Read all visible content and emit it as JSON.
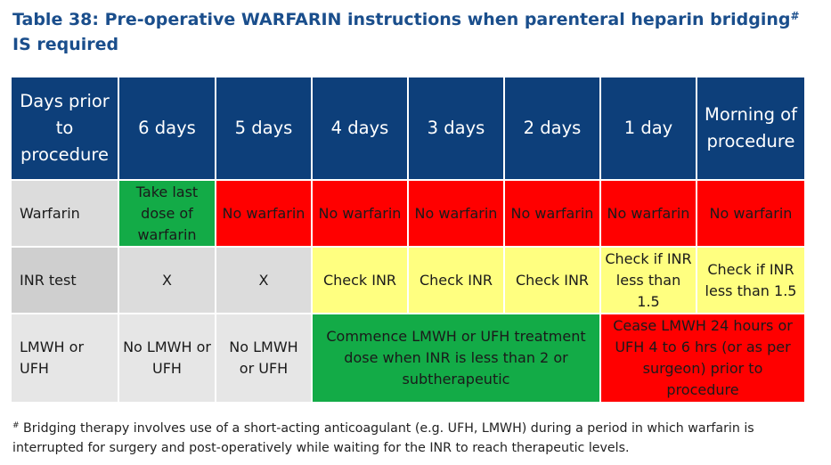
{
  "title": {
    "text_before": "Table 38: Pre-operative WARFARIN instructions when parenteral heparin bridging",
    "marker": "#",
    "text_after": " IS required"
  },
  "table": {
    "header": {
      "row_label": "Days prior to procedure",
      "columns": [
        "6 days",
        "5 days",
        "4 days",
        "3 days",
        "2 days",
        "1 day",
        "Morning of procedure"
      ]
    },
    "rows": [
      {
        "label": "Warfarin",
        "cells": [
          "Take last dose of warfarin",
          "No warfarin",
          "No warfarin",
          "No warfarin",
          "No warfarin",
          "No warfarin",
          "No warfarin"
        ],
        "colors": [
          "green",
          "red",
          "red",
          "red",
          "red",
          "red",
          "red"
        ]
      },
      {
        "label": "INR test",
        "cells": [
          "X",
          "X",
          "Check INR",
          "Check INR",
          "Check INR",
          "Check if INR less than 1.5",
          "Check if INR less than 1.5"
        ],
        "colors": [
          "grey",
          "grey",
          "yellow",
          "yellow",
          "yellow",
          "yellow",
          "yellow"
        ]
      },
      {
        "label": "LMWH or UFH",
        "cells": [
          "No LMWH or UFH",
          "No LMWH or UFH",
          "Commence LMWH or UFH treatment dose when INR is less than 2 or subtherapeutic",
          "Cease LMWH 24 hours or UFH 4 to 6 hrs (or as per surgeon) prior to procedure"
        ],
        "colors": [
          "lightgrey",
          "lightgrey",
          "green",
          "red"
        ]
      }
    ]
  },
  "footnote": {
    "marker": "#",
    "text": " Bridging therapy involves use of a short-acting anticoagulant (e.g. UFH, LMWH) during a period in which warfarin is interrupted for surgery and post-operatively while waiting for the INR to reach therapeutic levels."
  },
  "colors": {
    "title": "#1a4e8c",
    "header_bg": "#0d3f7a",
    "green": "#13ab47",
    "red": "#ff0000",
    "yellow": "#ffff80",
    "grey": "#dcdcdc"
  }
}
